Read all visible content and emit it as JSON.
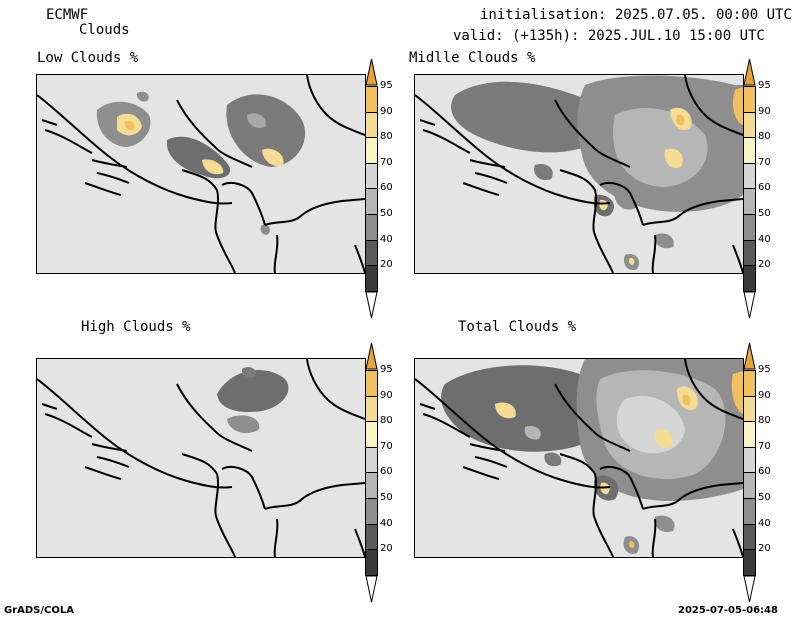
{
  "header": {
    "model": "ECMWF",
    "field": "Clouds",
    "init": "initialisation: 2025.07.05. 00:00 UTC",
    "valid": "valid: (+135h): 2025.JUL.10 15:00 UTC"
  },
  "panels": [
    {
      "title": "Low Clouds %"
    },
    {
      "title": "Midlle Clouds %"
    },
    {
      "title": "High Clouds %"
    },
    {
      "title": "Total Clouds %"
    }
  ],
  "colorbar": {
    "levels": [
      "95",
      "90",
      "80",
      "70",
      "60",
      "50",
      "40",
      "20"
    ],
    "colors": [
      "#e8a23a",
      "#f0c060",
      "#f5dc95",
      "#f8f4c4",
      "#d6d6d6",
      "#b6b6b6",
      "#8e8e8e",
      "#5a5a5a",
      "#3a3a3a",
      "#ffffff"
    ]
  },
  "footer": {
    "left": "GrADS/COLA",
    "right": "2025-07-05-06:48"
  }
}
